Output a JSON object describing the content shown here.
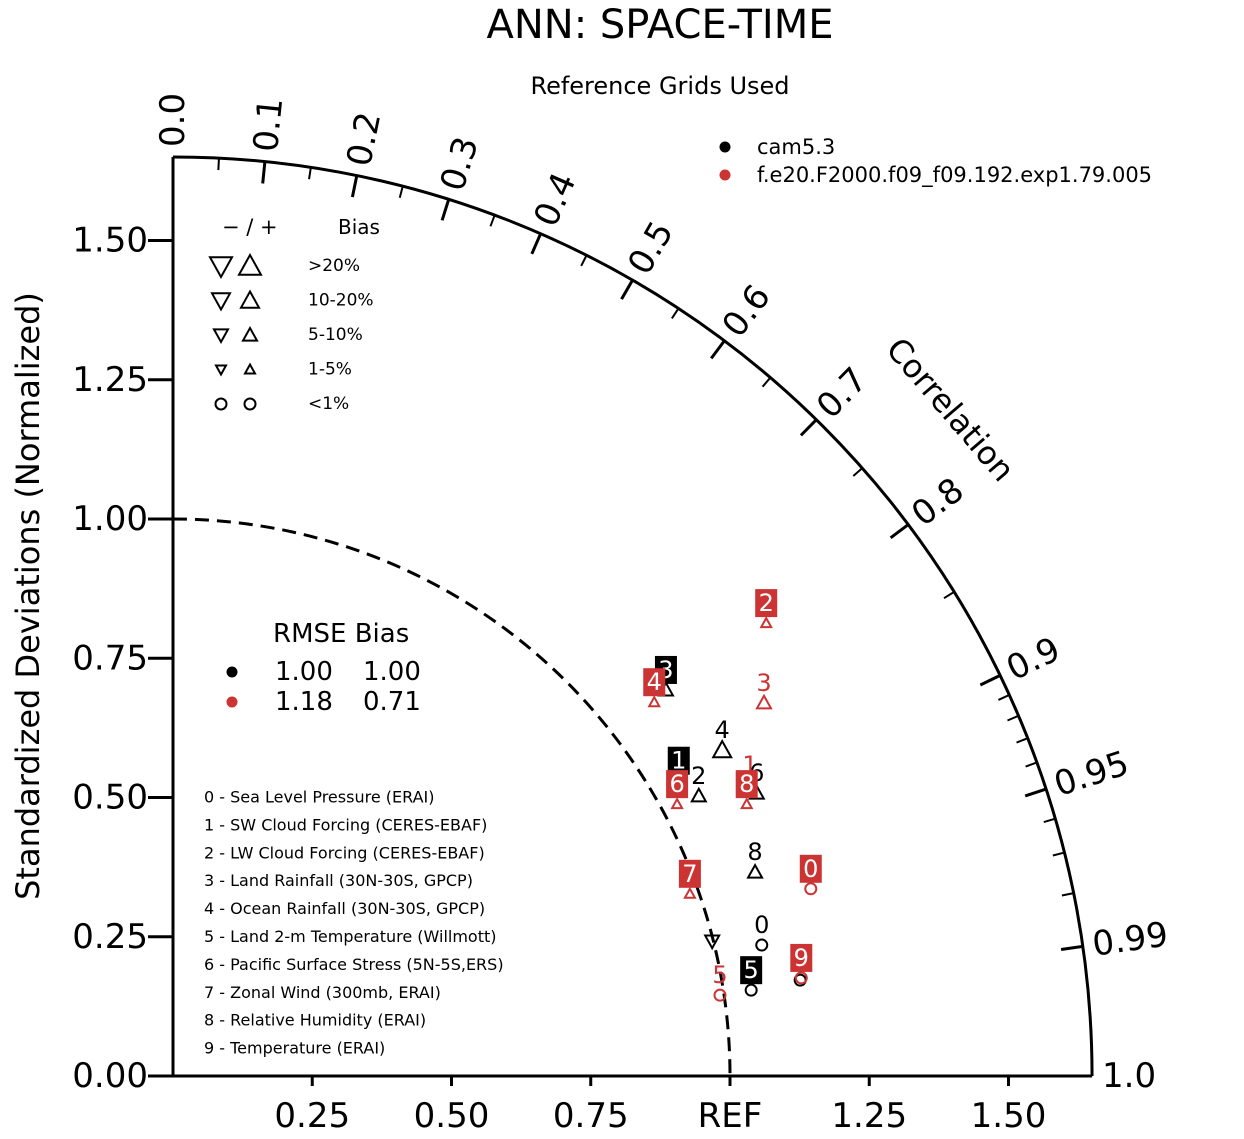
{
  "chart_data": {
    "type": "taylor",
    "title": "ANN: SPACE-TIME",
    "subtitle": "Reference Grids Used",
    "y_label": "Standardized Deviations (Normalized)",
    "corr_label": "Correlation",
    "xlim": [
      0,
      1.65
    ],
    "ylim": [
      0,
      1.65
    ],
    "xticks": [
      {
        "value": 0.25,
        "label": "0.25"
      },
      {
        "value": 0.5,
        "label": "0.50"
      },
      {
        "value": 0.75,
        "label": "0.75"
      },
      {
        "value": 1,
        "label": "REF"
      },
      {
        "value": 1.25,
        "label": "1.25"
      },
      {
        "value": 1.5,
        "label": "1.50"
      }
    ],
    "yticks": [
      {
        "value": 0,
        "label": "0.00"
      },
      {
        "value": 0.25,
        "label": "0.25"
      },
      {
        "value": 0.5,
        "label": "0.50"
      },
      {
        "value": 0.75,
        "label": "0.75"
      },
      {
        "value": 1,
        "label": "1.00"
      },
      {
        "value": 1.25,
        "label": "1.25"
      },
      {
        "value": 1.5,
        "label": "1.50"
      }
    ],
    "corr_ticks": [
      {
        "value": 0,
        "label": "0.0"
      },
      0.1,
      0.2,
      0.3,
      0.4,
      0.5,
      0.6,
      0.7,
      0.8,
      0.9,
      0.95,
      0.99,
      {
        "value": 1,
        "label": "1.0"
      }
    ],
    "corr_minor_ticks": [
      0.05,
      0.15,
      0.25,
      0.35,
      0.45,
      0.55,
      0.65,
      0.75,
      0.85,
      0.91,
      0.92,
      0.93,
      0.94,
      0.96,
      0.97,
      0.98
    ],
    "ref_radius": 1,
    "series": [
      {
        "name": "cam5.3",
        "color": "#000000",
        "x": [
          1.057,
          0.908,
          0.944,
          0.885,
          0.986,
          1.038,
          1.048,
          0.968,
          1.045,
          1.126
        ],
        "y": [
          0.271,
          0.566,
          0.539,
          0.729,
          0.621,
          0.19,
          0.544,
          0.278,
          0.402,
          0.208
        ],
        "labels": [
          "0",
          "1",
          "2",
          "3",
          "4",
          "5",
          "6",
          null,
          "8",
          "9"
        ],
        "boxed": [
          false,
          true,
          false,
          true,
          false,
          true,
          false,
          false,
          false,
          false
        ],
        "marker": [
          "circle",
          "up",
          "up",
          "up",
          "up",
          "circle",
          "up",
          "down",
          "up",
          "circle"
        ],
        "size_class": [
          4,
          2,
          2,
          2,
          1,
          4,
          2,
          2,
          2,
          4
        ]
      },
      {
        "name": "f.e20.F2000.f09_f09.192.exp1.79.005",
        "color": "#cc3333",
        "x": [
          1.145,
          1.036,
          1.065,
          1.061,
          0.864,
          0.982,
          0.905,
          0.928,
          1.03,
          1.128
        ],
        "y": [
          0.372,
          0.558,
          0.849,
          0.706,
          0.707,
          0.181,
          0.524,
          0.363,
          0.524,
          0.212
        ],
        "labels": [
          "0",
          "1",
          "2",
          "3",
          "4",
          "5",
          "6",
          "7",
          "8",
          "9"
        ],
        "boxed": [
          true,
          false,
          true,
          false,
          true,
          false,
          true,
          true,
          true,
          true
        ],
        "marker": [
          "circle",
          "up",
          "up",
          "up",
          "up",
          "circle",
          "up",
          "up",
          "up",
          "circle"
        ],
        "size_class": [
          4,
          3,
          3,
          2,
          3,
          4,
          3,
          3,
          3,
          4
        ]
      }
    ],
    "bias_legend": {
      "sign": "− / +",
      "header": "Bias",
      "rows": [
        ">20%",
        "10-20%",
        "5-10%",
        "1-5%",
        "<1%"
      ]
    },
    "stats_table": {
      "header": "RMSE Bias",
      "rows": [
        [
          "1.00",
          "1.00"
        ],
        [
          "1.18",
          "0.71"
        ]
      ]
    },
    "variables": [
      "0 - Sea Level Pressure (ERAI)",
      "1 - SW Cloud Forcing (CERES-EBAF)",
      "2 - LW Cloud Forcing (CERES-EBAF)",
      "3 - Land Rainfall (30N-30S, GPCP)",
      "4 - Ocean Rainfall (30N-30S, GPCP)",
      "5 - Land 2-m Temperature (Willmott)",
      "6 - Pacific Surface Stress (5N-5S,ERS)",
      "7 - Zonal Wind (300mb, ERAI)",
      "8 - Relative Humidity (ERAI)",
      "9 - Temperature (ERAI)"
    ]
  }
}
